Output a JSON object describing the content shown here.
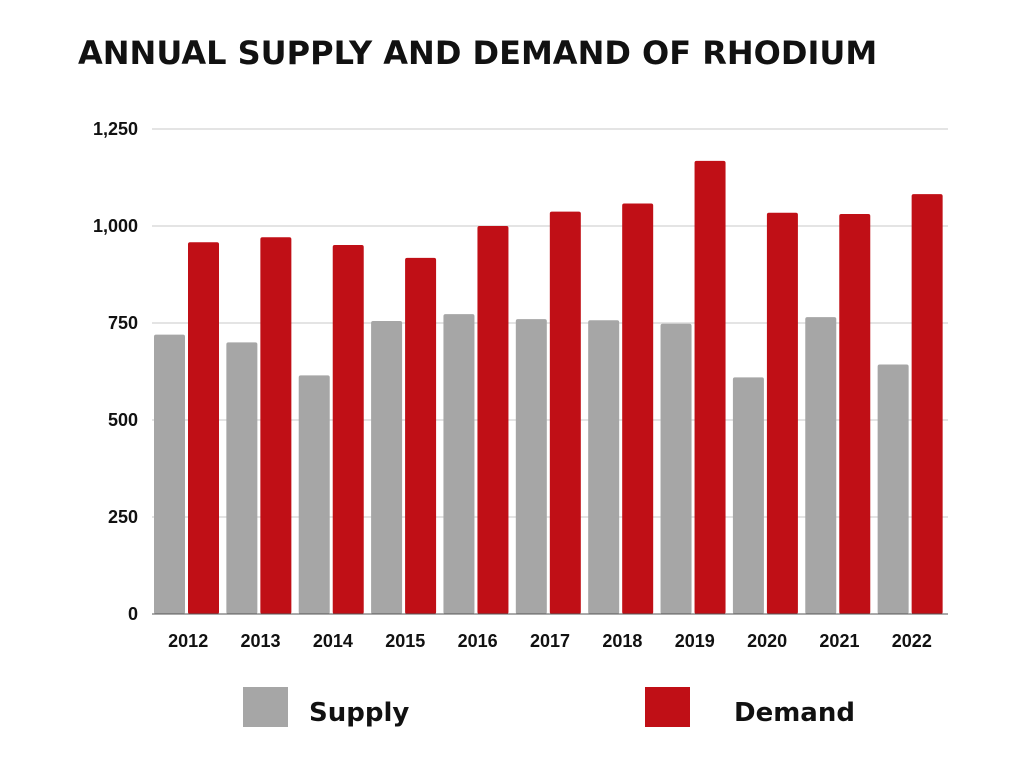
{
  "chart_data": {
    "type": "bar",
    "title": "ANNUAL SUPPLY AND DEMAND OF RHODIUM",
    "xlabel": "",
    "ylabel": "",
    "categories": [
      "2012",
      "2013",
      "2014",
      "2015",
      "2016",
      "2017",
      "2018",
      "2019",
      "2020",
      "2021",
      "2022"
    ],
    "series": [
      {
        "name": "Supply",
        "color": "#a6a6a6",
        "values": [
          720,
          700,
          615,
          755,
          773,
          760,
          757,
          748,
          610,
          765,
          643
        ]
      },
      {
        "name": "Demand",
        "color": "#c00f16",
        "values": [
          958,
          971,
          951,
          918,
          1000,
          1037,
          1058,
          1168,
          1034,
          1031,
          1082
        ]
      }
    ],
    "ylim": [
      0,
      1250
    ],
    "yticks": [
      0,
      250,
      500,
      750,
      1000,
      1250
    ],
    "ytick_labels": [
      "0",
      "250",
      "500",
      "750",
      "1,000",
      "1,250"
    ],
    "grid": true,
    "legend_position": "bottom"
  }
}
